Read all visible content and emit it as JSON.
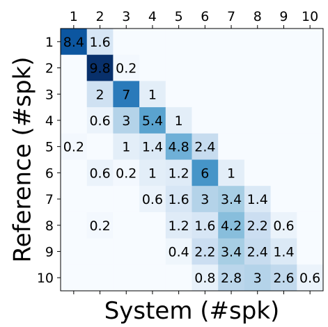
{
  "chart_data": {
    "type": "heatmap",
    "title": "",
    "xlabel": "System (#spk)",
    "ylabel": "Reference (#spk)",
    "x_categories": [
      "1",
      "2",
      "3",
      "4",
      "5",
      "6",
      "7",
      "8",
      "9",
      "10"
    ],
    "y_categories": [
      "1",
      "2",
      "3",
      "4",
      "5",
      "6",
      "7",
      "8",
      "9",
      "10"
    ],
    "x_tick_position": "top",
    "colormap": "Blues",
    "color_range": [
      0,
      9.8
    ],
    "grid": false,
    "values": [
      [
        8.4,
        1.6,
        null,
        null,
        null,
        null,
        null,
        null,
        null,
        null
      ],
      [
        null,
        9.8,
        0.2,
        null,
        null,
        null,
        null,
        null,
        null,
        null
      ],
      [
        null,
        2,
        7,
        1,
        null,
        null,
        null,
        null,
        null,
        null
      ],
      [
        null,
        0.6,
        3,
        5.4,
        1,
        null,
        null,
        null,
        null,
        null
      ],
      [
        0.2,
        null,
        1,
        1.4,
        4.8,
        2.4,
        null,
        null,
        null,
        null
      ],
      [
        null,
        0.6,
        0.2,
        1,
        1.2,
        6,
        1,
        null,
        null,
        null
      ],
      [
        null,
        null,
        null,
        0.6,
        1.6,
        3,
        3.4,
        1.4,
        null,
        null
      ],
      [
        null,
        0.2,
        null,
        null,
        1.2,
        1.6,
        4.2,
        2.2,
        0.6,
        null
      ],
      [
        null,
        null,
        null,
        null,
        0.4,
        2.2,
        3.4,
        2.4,
        1.4,
        null
      ],
      [
        null,
        null,
        null,
        null,
        null,
        0.8,
        2.8,
        3,
        2.6,
        0.6
      ]
    ]
  }
}
